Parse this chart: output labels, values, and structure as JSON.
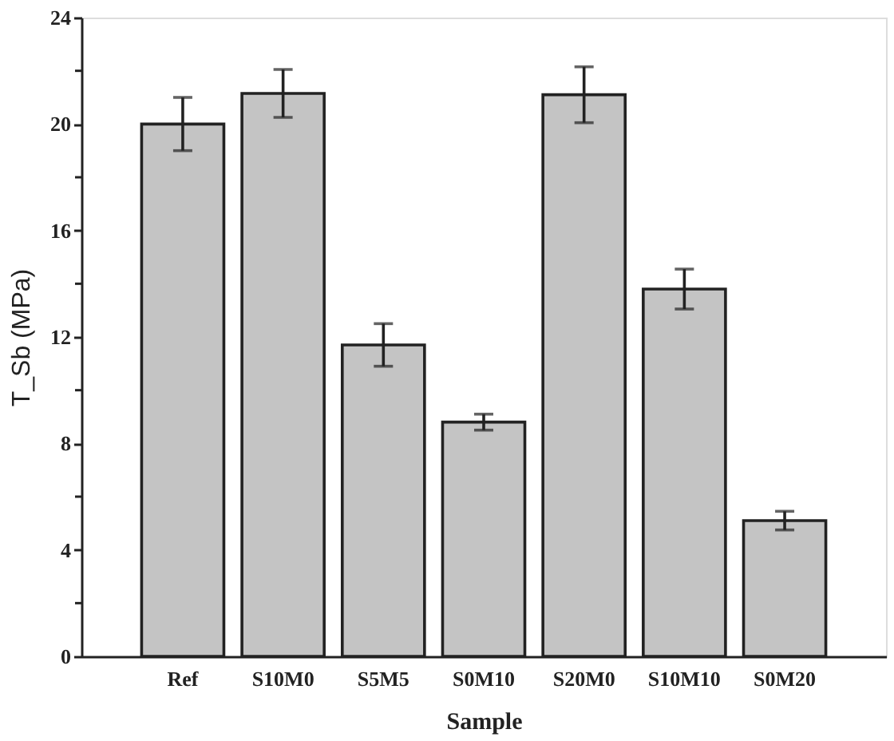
{
  "chart_data": {
    "type": "bar",
    "xlabel": "Sample",
    "ylabel": "T_Sb (MPa)",
    "categories": [
      "Ref",
      "S10M0",
      "S5M5",
      "S0M10",
      "S20M0",
      "S10M10",
      "S0M20"
    ],
    "values": [
      20.0,
      21.15,
      11.7,
      8.8,
      21.1,
      13.8,
      5.1
    ],
    "errors": [
      1.0,
      0.9,
      0.8,
      0.3,
      1.05,
      0.75,
      0.35
    ],
    "color": "#c4c4c4",
    "ylim": [
      0,
      24
    ],
    "yticks": [
      0,
      {
        "value": 2,
        "label": null
      },
      4,
      {
        "value": 6,
        "label": null
      },
      8,
      {
        "value": 10,
        "label": null
      },
      12,
      {
        "value": 14,
        "label": null
      },
      16,
      {
        "value": 18,
        "label": null
      },
      20,
      {
        "value": 22,
        "label": null
      },
      24
    ],
    "grid": false
  }
}
